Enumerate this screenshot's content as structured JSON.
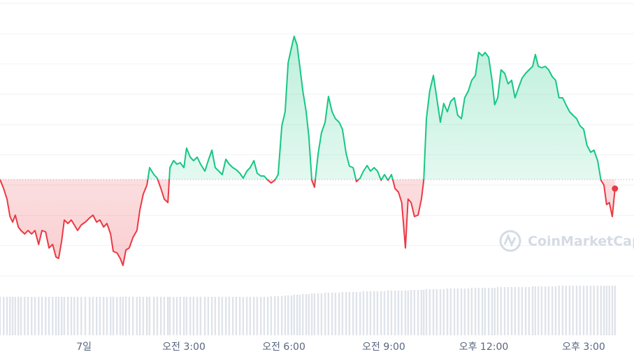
{
  "chart_data": {
    "type": "line",
    "x": [
      -2.52,
      -2.41,
      -2.31,
      -2.22,
      -2.14,
      -2.06,
      -1.97,
      -1.89,
      -1.78,
      -1.68,
      -1.57,
      -1.47,
      -1.36,
      -1.26,
      -1.15,
      -1.05,
      -0.94,
      -0.84,
      -0.76,
      -0.67,
      -0.59,
      -0.48,
      -0.38,
      -0.29,
      -0.19,
      -0.08,
      0.04,
      0.17,
      0.27,
      0.38,
      0.48,
      0.59,
      0.69,
      0.8,
      0.88,
      0.99,
      1.09,
      1.17,
      1.26,
      1.36,
      1.47,
      1.59,
      1.68,
      1.78,
      1.89,
      1.97,
      2.1,
      2.2,
      2.31,
      2.41,
      2.52,
      2.58,
      2.69,
      2.79,
      2.89,
      3.0,
      3.08,
      3.19,
      3.29,
      3.4,
      3.5,
      3.63,
      3.73,
      3.84,
      3.94,
      4.05,
      4.15,
      4.26,
      4.36,
      4.47,
      4.57,
      4.68,
      4.78,
      4.89,
      4.99,
      5.1,
      5.2,
      5.31,
      5.41,
      5.52,
      5.62,
      5.73,
      5.83,
      5.94,
      6.04,
      6.13,
      6.23,
      6.31,
      6.4,
      6.48,
      6.57,
      6.67,
      6.75,
      6.84,
      6.92,
      7.03,
      7.13,
      7.24,
      7.34,
      7.45,
      7.55,
      7.66,
      7.76,
      7.87,
      7.97,
      8.08,
      8.18,
      8.29,
      8.39,
      8.5,
      8.6,
      8.71,
      8.81,
      8.92,
      9.02,
      9.13,
      9.23,
      9.34,
      9.44,
      9.54,
      9.65,
      9.73,
      9.82,
      9.92,
      10.03,
      10.13,
      10.2,
      10.28,
      10.38,
      10.49,
      10.59,
      10.7,
      10.8,
      10.91,
      11.01,
      11.12,
      11.22,
      11.33,
      11.43,
      11.54,
      11.64,
      11.75,
      11.85,
      11.96,
      12.04,
      12.15,
      12.25,
      12.33,
      12.42,
      12.52,
      12.63,
      12.73,
      12.84,
      12.94,
      13.05,
      13.15,
      13.26,
      13.36,
      13.47,
      13.55,
      13.64,
      13.74,
      13.85,
      13.95,
      14.06,
      14.16,
      14.26,
      14.37,
      14.47,
      14.58,
      14.68,
      14.79,
      14.89,
      15.0,
      15.1,
      15.21,
      15.31,
      15.42,
      15.52,
      15.61,
      15.69,
      15.77,
      15.86,
      15.94
    ],
    "values": [
      138,
      125,
      110,
      85,
      77,
      87,
      70,
      65,
      60,
      65,
      60,
      65,
      45,
      65,
      63,
      40,
      45,
      27,
      25,
      50,
      80,
      75,
      80,
      73,
      65,
      73,
      77,
      83,
      87,
      77,
      80,
      70,
      75,
      60,
      35,
      33,
      25,
      15,
      37,
      40,
      55,
      65,
      95,
      117,
      130,
      155,
      145,
      140,
      125,
      110,
      105,
      155,
      165,
      160,
      162,
      155,
      183,
      170,
      165,
      170,
      160,
      150,
      165,
      180,
      155,
      150,
      145,
      167,
      160,
      155,
      152,
      147,
      140,
      150,
      155,
      165,
      147,
      143,
      143,
      137,
      133,
      137,
      145,
      215,
      235,
      305,
      327,
      343,
      330,
      300,
      265,
      235,
      200,
      137,
      127,
      175,
      205,
      220,
      257,
      235,
      225,
      220,
      210,
      175,
      157,
      155,
      135,
      140,
      150,
      158,
      150,
      155,
      150,
      137,
      145,
      137,
      145,
      125,
      120,
      105,
      40,
      110,
      105,
      85,
      87,
      110,
      137,
      225,
      265,
      287,
      255,
      220,
      247,
      235,
      250,
      255,
      230,
      225,
      255,
      265,
      280,
      287,
      320,
      315,
      320,
      313,
      280,
      245,
      255,
      295,
      290,
      275,
      280,
      255,
      270,
      283,
      290,
      295,
      300,
      317,
      300,
      298,
      300,
      295,
      285,
      280,
      255,
      255,
      245,
      235,
      230,
      225,
      215,
      210,
      187,
      177,
      180,
      165,
      137,
      130,
      102,
      105,
      85,
      125
    ],
    "volume": [
      55,
      55,
      55,
      55,
      55,
      55,
      55,
      55,
      55,
      55,
      55,
      55,
      55,
      55,
      55,
      55,
      55,
      55,
      55,
      55,
      55,
      55,
      55,
      55,
      55,
      55,
      55,
      55,
      55,
      55,
      55,
      55,
      55,
      55,
      55,
      55,
      55,
      55,
      55,
      55,
      55,
      55,
      55,
      55,
      55,
      55,
      55,
      55,
      55,
      55,
      55,
      55,
      55,
      55,
      55,
      55,
      55,
      55,
      55,
      55,
      55,
      55,
      55,
      55,
      55,
      55,
      55,
      55,
      55,
      55,
      55,
      55,
      55,
      55,
      55,
      55,
      55,
      55,
      55,
      55,
      56,
      56,
      56,
      56,
      57,
      57,
      57,
      58,
      58,
      58,
      59,
      59,
      59,
      60,
      60,
      60,
      60,
      61,
      61,
      61,
      61,
      61,
      62,
      62,
      62,
      62,
      62,
      62,
      63,
      63,
      63,
      63,
      63,
      63,
      63,
      64,
      64,
      64,
      64,
      64,
      64,
      64,
      65,
      65,
      65,
      65,
      65,
      66,
      66,
      66,
      66,
      66,
      66,
      67,
      67,
      67,
      67,
      67,
      67,
      67,
      68,
      68,
      68,
      68,
      68,
      68,
      68,
      68,
      69,
      69,
      69,
      69,
      69,
      69,
      69,
      69,
      69,
      69,
      70,
      70,
      70,
      70,
      70,
      70,
      70,
      70,
      71,
      71,
      71,
      71,
      71,
      71,
      71,
      71,
      71,
      71,
      71,
      71,
      71,
      71,
      71,
      71,
      71,
      71
    ],
    "baseline": 138,
    "xlim": [
      -2.52,
      16.05
    ],
    "ylim": [
      0,
      390
    ],
    "volume_ylim": [
      0,
      100
    ],
    "xticks": [
      {
        "value": 0,
        "label": "7일"
      },
      {
        "value": 3,
        "label": "오전 3:00"
      },
      {
        "value": 6,
        "label": "오전 6:00"
      },
      {
        "value": 9,
        "label": "오전 9:00"
      },
      {
        "value": 12,
        "label": "오후 12:00"
      },
      {
        "value": 15,
        "label": "오후 3:00"
      }
    ],
    "up_color": "#16c784",
    "down_color": "#ea3943",
    "volume_color": "#dfe3ea",
    "grid": true
  },
  "watermark": "CoinMarketCap"
}
